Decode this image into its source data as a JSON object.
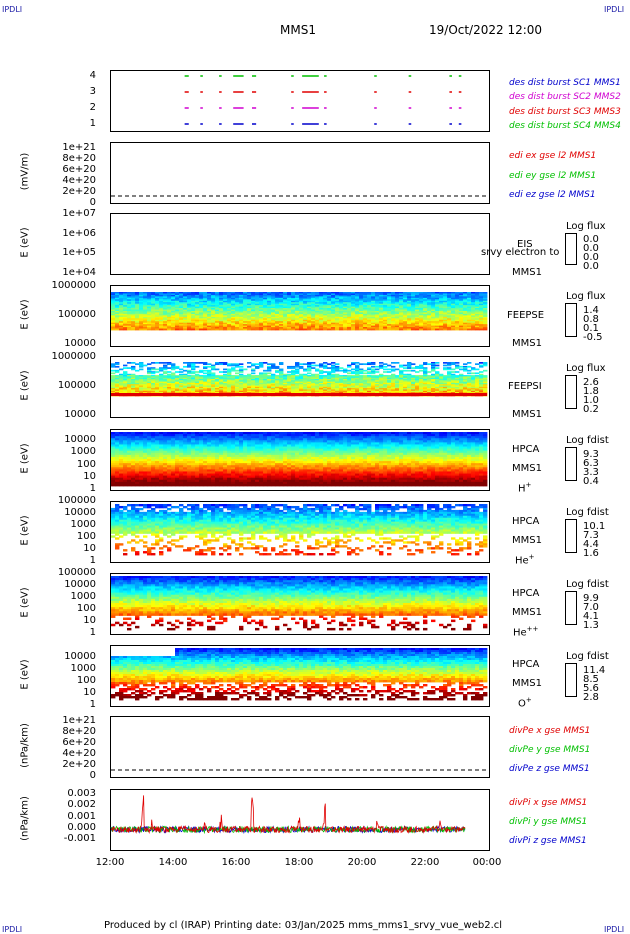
{
  "corners": {
    "top_left": "IPDLI",
    "top_right": "IPDLI",
    "bottom_left": "IPDLI",
    "bottom_right": "IPDLI"
  },
  "header": {
    "mission": "MMS1",
    "datetime": "19/Oct/2022 12:00"
  },
  "footer": "Produced by cl (IRAP)   Printing date: 03/Jan/2025   mms_mms1_srvy_vue_web2.cl",
  "x_axis": {
    "ticks": [
      "12:00",
      "14:00",
      "16:00",
      "18:00",
      "20:00",
      "22:00",
      "00:00"
    ]
  },
  "colors": {
    "red": "#e00000",
    "green": "#00c000",
    "blue": "#0000cc",
    "magenta": "#d000d0"
  },
  "chart_data": [
    {
      "type": "scatter",
      "id": "burst",
      "yticks": [
        "4",
        "3",
        "2",
        "1"
      ],
      "legend": [
        "des dist burst SC1 MMS1",
        "des dist burst SC2 MMS2",
        "des dist burst SC3 MMS3",
        "des dist burst SC4 MMS4"
      ],
      "series": [
        {
          "name": "des dist burst SC1 MMS1",
          "y": 1,
          "segments": [
            [
              14.35,
              14.45
            ],
            [
              14.85,
              14.9
            ],
            [
              15.45,
              15.5
            ],
            [
              15.9,
              16.2
            ],
            [
              16.5,
              16.6
            ],
            [
              17.75,
              17.8
            ],
            [
              18.1,
              18.6
            ],
            [
              18.8,
              18.85
            ],
            [
              20.4,
              20.45
            ],
            [
              21.5,
              21.55
            ],
            [
              22.8,
              22.85
            ],
            [
              23.1,
              23.15
            ]
          ]
        },
        {
          "name": "des dist burst SC2 MMS2",
          "y": 2,
          "segments": [
            [
              14.35,
              14.45
            ],
            [
              14.85,
              14.9
            ],
            [
              15.45,
              15.5
            ],
            [
              15.9,
              16.2
            ],
            [
              16.5,
              16.6
            ],
            [
              17.75,
              17.8
            ],
            [
              18.1,
              18.6
            ],
            [
              18.8,
              18.85
            ],
            [
              20.4,
              20.45
            ],
            [
              21.5,
              21.55
            ],
            [
              22.8,
              22.85
            ],
            [
              23.1,
              23.15
            ]
          ]
        },
        {
          "name": "des dist burst SC3 MMS3",
          "y": 3,
          "segments": [
            [
              14.35,
              14.45
            ],
            [
              14.85,
              14.9
            ],
            [
              15.45,
              15.5
            ],
            [
              15.9,
              16.2
            ],
            [
              16.5,
              16.6
            ],
            [
              17.75,
              17.8
            ],
            [
              18.1,
              18.6
            ],
            [
              18.8,
              18.85
            ],
            [
              20.4,
              20.45
            ],
            [
              21.5,
              21.55
            ],
            [
              22.8,
              22.85
            ],
            [
              23.1,
              23.15
            ]
          ]
        },
        {
          "name": "des dist burst SC4 MMS4",
          "y": 4,
          "segments": [
            [
              14.35,
              14.45
            ],
            [
              14.85,
              14.9
            ],
            [
              15.45,
              15.5
            ],
            [
              15.9,
              16.2
            ],
            [
              16.5,
              16.6
            ],
            [
              17.75,
              17.8
            ],
            [
              18.1,
              18.6
            ],
            [
              18.8,
              18.85
            ],
            [
              20.4,
              20.45
            ],
            [
              21.5,
              21.55
            ],
            [
              22.8,
              22.85
            ],
            [
              23.1,
              23.15
            ]
          ]
        }
      ]
    },
    {
      "type": "line",
      "id": "edi",
      "ylabel": "(mV/m)",
      "yticks": [
        "1e+21",
        "8e+20",
        "6e+20",
        "4e+20",
        "2e+20",
        "0"
      ],
      "legend": [
        "edi ex gse l2 MMS1",
        "edi ey gse l2 MMS1",
        "edi ez gse l2 MMS1"
      ]
    },
    {
      "type": "heatmap",
      "id": "eis",
      "ylabel": "E (eV)",
      "yticks": [
        "1e+07",
        "1e+06",
        "1e+05",
        "1e+04"
      ],
      "name": "EIS",
      "sc": "MMS1",
      "overlay": "srvy electron to",
      "cbar_title": "Log flux",
      "cbar_values": [
        "0.0",
        "0.0",
        "0.0",
        "0.0"
      ]
    },
    {
      "type": "heatmap",
      "id": "feepse",
      "ylabel": "E (eV)",
      "yticks": [
        "1000000",
        "100000",
        "10000"
      ],
      "name": "FEEPSE",
      "sc": "MMS1",
      "cbar_title": "Log flux",
      "cbar_values": [
        "1.4",
        "0.8",
        "0.1",
        "-0.5"
      ]
    },
    {
      "type": "heatmap",
      "id": "feepsi",
      "ylabel": "E (eV)",
      "yticks": [
        "1000000",
        "100000",
        "10000"
      ],
      "name": "FEEPSI",
      "sc": "MMS1",
      "cbar_title": "Log flux",
      "cbar_values": [
        "2.6",
        "1.8",
        "1.0",
        "0.2"
      ]
    },
    {
      "type": "heatmap",
      "id": "hpca_h",
      "ylabel": "E (eV)",
      "yticks": [
        "10000",
        "1000",
        "100",
        "10",
        "1"
      ],
      "name": "HPCA",
      "sc": "MMS1",
      "species": "H",
      "charge": "+",
      "cbar_title": "Log fdist",
      "cbar_values": [
        "9.3",
        "6.3",
        "3.3",
        "0.4"
      ]
    },
    {
      "type": "heatmap",
      "id": "hpca_he",
      "ylabel": "E (eV)",
      "yticks": [
        "100000",
        "10000",
        "1000",
        "100",
        "10",
        "1"
      ],
      "name": "HPCA",
      "sc": "MMS1",
      "species": "He",
      "charge": "+",
      "cbar_title": "Log fdist",
      "cbar_values": [
        "10.1",
        "7.3",
        "4.4",
        "1.6"
      ]
    },
    {
      "type": "heatmap",
      "id": "hpca_hepp",
      "ylabel": "E (eV)",
      "yticks": [
        "100000",
        "10000",
        "1000",
        "100",
        "10",
        "1"
      ],
      "name": "HPCA",
      "sc": "MMS1",
      "species": "He",
      "charge": "++",
      "cbar_title": "Log fdist",
      "cbar_values": [
        "9.9",
        "7.0",
        "4.1",
        "1.3"
      ]
    },
    {
      "type": "heatmap",
      "id": "hpca_o",
      "ylabel": "E (eV)",
      "yticks": [
        "10000",
        "1000",
        "100",
        "10",
        "1"
      ],
      "name": "HPCA",
      "sc": "MMS1",
      "species": "O",
      "charge": "+",
      "cbar_title": "Log fdist",
      "cbar_values": [
        "11.4",
        "8.5",
        "5.6",
        "2.8"
      ]
    },
    {
      "type": "line",
      "id": "divpe",
      "ylabel": "(nPa/km)",
      "yticks": [
        "1e+21",
        "8e+20",
        "6e+20",
        "4e+20",
        "2e+20",
        "0"
      ],
      "legend": [
        "divPe x gse MMS1",
        "divPe y gse MMS1",
        "divPe z gse MMS1"
      ]
    },
    {
      "type": "line",
      "id": "divpi",
      "ylabel": "(nPa/km)",
      "yticks": [
        "0.003",
        "0.002",
        "0.001",
        "0.000",
        "-0.001"
      ],
      "ylim": [
        -0.0015,
        0.0032
      ],
      "legend": [
        "divPi x gse MMS1",
        "divPi y gse MMS1",
        "divPi z gse MMS1"
      ]
    }
  ]
}
